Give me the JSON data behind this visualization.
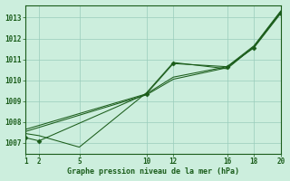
{
  "title": "Graphe pression niveau de la mer (hPa)",
  "background_color": "#cceedd",
  "grid_color": "#99ccbb",
  "line_color": "#1a5c1a",
  "xlim": [
    1,
    20
  ],
  "ylim": [
    1006.5,
    1013.6
  ],
  "xticks": [
    1,
    2,
    5,
    10,
    12,
    16,
    18,
    20
  ],
  "yticks": [
    1007,
    1008,
    1009,
    1010,
    1011,
    1012,
    1013
  ],
  "series": [
    {
      "x": [
        1,
        2,
        10,
        12,
        16,
        18,
        20
      ],
      "y": [
        1007.25,
        1007.1,
        1009.35,
        1010.8,
        1010.65,
        1011.55,
        1013.2
      ],
      "marker": "D",
      "ms": 2.5
    },
    {
      "x": [
        1,
        2,
        5,
        10,
        12,
        16,
        18,
        20
      ],
      "y": [
        1007.45,
        1007.35,
        1006.8,
        1009.4,
        1010.85,
        1010.55,
        1011.6,
        1013.25
      ],
      "marker": null,
      "ms": null
    },
    {
      "x": [
        1,
        10,
        12,
        16,
        18,
        20
      ],
      "y": [
        1007.55,
        1009.3,
        1010.05,
        1010.6,
        1011.6,
        1013.28
      ],
      "marker": null,
      "ms": null
    },
    {
      "x": [
        1,
        10,
        12,
        16,
        18,
        20
      ],
      "y": [
        1007.65,
        1009.35,
        1010.15,
        1010.65,
        1011.65,
        1013.32
      ],
      "marker": null,
      "ms": null
    }
  ]
}
